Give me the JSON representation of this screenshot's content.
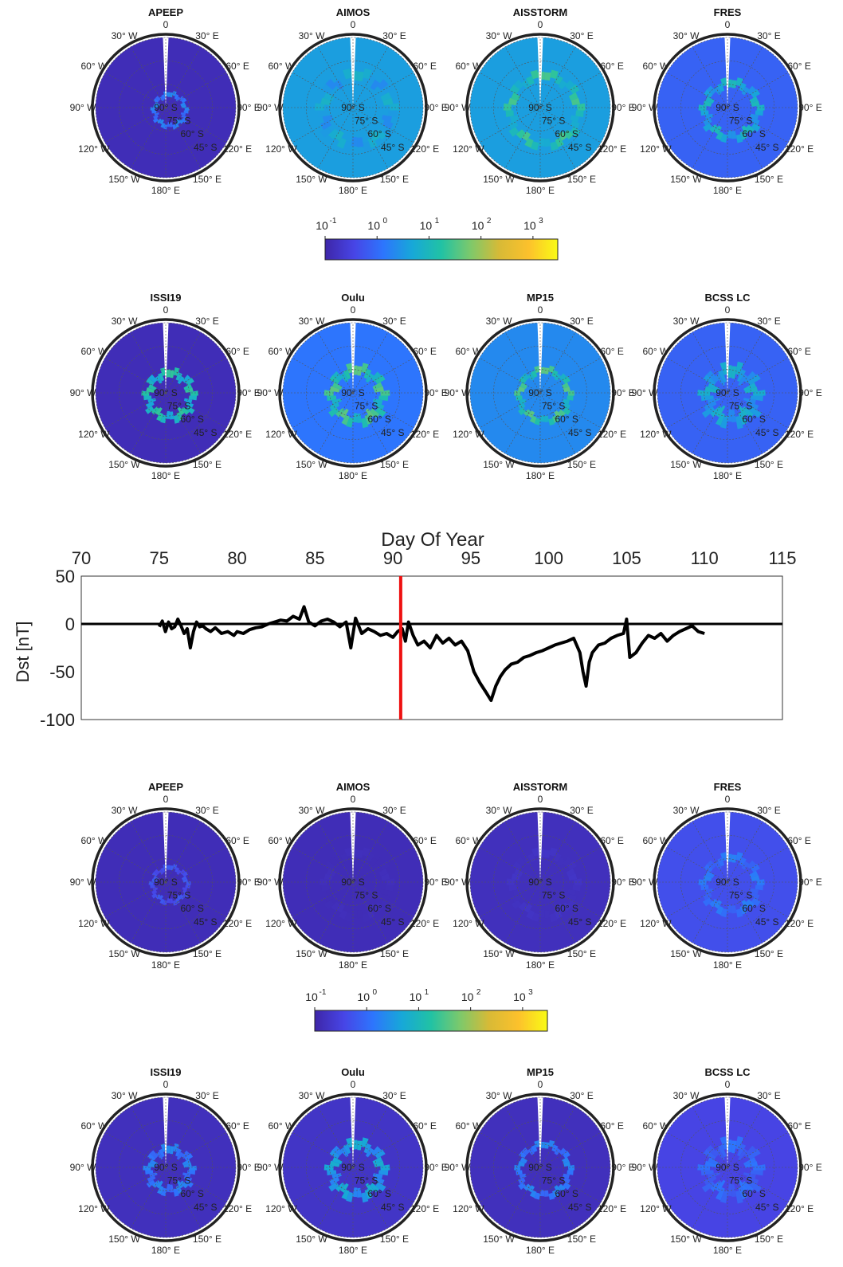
{
  "polar_panel": {
    "lon_labels": [
      "0",
      "30",
      "E",
      "60",
      "E",
      "90",
      "E",
      "120",
      "E",
      "150",
      "E",
      "180",
      "E",
      "150",
      "W",
      "120",
      "W",
      "90",
      "W",
      "60",
      "W",
      "30",
      "W"
    ],
    "lat_labels": [
      "90",
      "S",
      "75",
      "S",
      "60",
      "S",
      "45",
      "S"
    ],
    "degree_symbol": "°"
  },
  "colorbar": {
    "base": "10",
    "exponents": [
      "-1",
      "0",
      "1",
      "2",
      "3"
    ],
    "colormap": [
      "#3e26a8",
      "#4745e6",
      "#2d75fd",
      "#17a8d8",
      "#21c2a4",
      "#7dc96b",
      "#d8ba36",
      "#fcc12c",
      "#f9fb15"
    ],
    "scale": "log",
    "range": [
      0.1,
      3000
    ]
  },
  "line_chart": {
    "title": "Day Of Year",
    "ylabel": "Dst [nT]",
    "xticks": [
      "70",
      "75",
      "80",
      "85",
      "90",
      "95",
      "100",
      "105",
      "110",
      "115"
    ],
    "yticks": [
      "50",
      "0",
      "-50",
      "-100"
    ],
    "line_color": "#000000",
    "marker_color": "#ee1111"
  },
  "chart_data": [
    {
      "type": "heatmap",
      "panel": "APEEP",
      "group": 1,
      "title": "APEEP",
      "projection": "polar-stereographic-south",
      "scale": "log",
      "colorbar_range": [
        0.1,
        3000
      ],
      "oval_center_lat": -83,
      "oval_radius_deg": 10,
      "oval_width_deg": 3,
      "background_level": 0.03,
      "oval_level": 0.3,
      "fill_limit_lat": -45
    },
    {
      "type": "heatmap",
      "panel": "AIMOS",
      "group": 1,
      "title": "AIMOS",
      "projection": "polar-stereographic-south",
      "scale": "log",
      "colorbar_range": [
        0.1,
        3000
      ],
      "oval_radius_deg": 22,
      "oval_width_deg": 6,
      "background_level": 0.35,
      "oval_level": 0.42,
      "fill_limit_lat": -42
    },
    {
      "type": "heatmap",
      "panel": "AISSTORM",
      "group": 1,
      "title": "AISSTORM",
      "projection": "polar-stereographic-south",
      "scale": "log",
      "colorbar_range": [
        0.1,
        3000
      ],
      "oval_radius_deg": 22,
      "oval_width_deg": 5,
      "background_level": 0.35,
      "oval_level": 0.55,
      "fill_limit_lat": -42
    },
    {
      "type": "heatmap",
      "panel": "FRES",
      "group": 1,
      "title": "FRES",
      "projection": "polar-stereographic-south",
      "scale": "log",
      "colorbar_range": [
        0.1,
        3000
      ],
      "oval_radius_deg": 17,
      "oval_width_deg": 5,
      "background_level": 0.2,
      "oval_level": 0.45,
      "fill_limit_lat": -40
    },
    {
      "type": "heatmap",
      "panel": "ISSI19",
      "group": 1,
      "title": "ISSI19",
      "projection": "polar-stereographic-south",
      "scale": "log",
      "colorbar_range": [
        0.1,
        3000
      ],
      "oval_radius_deg": 14,
      "oval_width_deg": 5,
      "background_level": 0.03,
      "oval_level": 0.52,
      "fill_limit_lat": -45
    },
    {
      "type": "heatmap",
      "panel": "Oulu",
      "group": 1,
      "title": "Oulu",
      "projection": "polar-stereographic-south",
      "scale": "log",
      "colorbar_range": [
        0.1,
        3000
      ],
      "oval_radius_deg": 16,
      "oval_width_deg": 6,
      "background_level": 0.25,
      "oval_level": 0.58,
      "fill_limit_lat": -42
    },
    {
      "type": "heatmap",
      "panel": "MP15",
      "group": 1,
      "title": "MP15",
      "projection": "polar-stereographic-south",
      "scale": "log",
      "colorbar_range": [
        0.1,
        3000
      ],
      "oval_radius_deg": 16,
      "oval_width_deg": 4,
      "background_level": 0.3,
      "oval_level": 0.58,
      "fill_limit_lat": -42
    },
    {
      "type": "heatmap",
      "panel": "BCSS LC",
      "group": 1,
      "title": "BCSS LC",
      "projection": "polar-stereographic-south",
      "scale": "log",
      "colorbar_range": [
        0.1,
        3000
      ],
      "oval_radius_deg": 15,
      "oval_width_deg": 8,
      "background_level": 0.2,
      "oval_level": 0.42,
      "fill_limit_lat": -42
    },
    {
      "type": "line",
      "title": "Day Of Year",
      "xlabel": "Day Of Year",
      "ylabel": "Dst [nT]",
      "xlim": [
        70,
        115
      ],
      "ylim": [
        -100,
        50
      ],
      "xticks": [
        70,
        75,
        80,
        85,
        90,
        95,
        100,
        105,
        110,
        115
      ],
      "yticks": [
        50,
        0,
        -50,
        -100
      ],
      "zero_line": 0,
      "vertical_marker_x": 90.5,
      "series": [
        {
          "x": [
            75.0,
            75.2,
            75.4,
            75.6,
            75.8,
            76.0,
            76.2,
            76.4,
            76.6,
            76.8,
            77.0,
            77.2,
            77.4,
            77.6,
            77.8,
            78.0,
            78.3,
            78.6,
            79.0,
            79.4,
            79.8,
            80.0,
            80.4,
            80.8,
            81.2,
            81.6,
            82.0,
            82.4,
            82.8,
            83.2,
            83.6,
            84.0,
            84.3,
            84.6,
            85.0,
            85.4,
            85.8,
            86.2,
            86.6,
            87.0,
            87.3,
            87.6,
            88.0,
            88.4,
            88.8,
            89.2,
            89.6,
            90.0,
            90.3,
            90.6,
            90.8,
            91.0,
            91.3,
            91.6,
            92.0,
            92.4,
            92.8,
            93.2,
            93.6,
            94.0,
            94.4,
            94.8,
            95.2,
            95.6,
            96.0,
            96.3,
            96.6,
            96.9,
            97.2,
            97.6,
            98.0,
            98.4,
            98.8,
            99.2,
            99.6,
            100.0,
            100.4,
            100.8,
            101.2,
            101.6,
            102.0,
            102.2,
            102.4,
            102.6,
            102.8,
            103.2,
            103.6,
            104.0,
            104.4,
            104.8,
            105.0,
            105.2,
            105.6,
            106.0,
            106.4,
            106.8,
            107.2,
            107.6,
            108.0,
            108.4,
            108.8,
            109.2,
            109.6,
            110.0
          ],
          "y": [
            -3,
            3,
            -8,
            2,
            -5,
            -3,
            5,
            -2,
            -10,
            -5,
            -25,
            -8,
            2,
            -3,
            -2,
            -5,
            -8,
            -4,
            -10,
            -8,
            -12,
            -8,
            -10,
            -6,
            -4,
            -3,
            0,
            2,
            4,
            3,
            8,
            5,
            18,
            2,
            -2,
            3,
            5,
            2,
            -3,
            2,
            -25,
            6,
            -10,
            -5,
            -8,
            -12,
            -10,
            -14,
            -8,
            -5,
            -18,
            2,
            -12,
            -22,
            -18,
            -25,
            -12,
            -20,
            -15,
            -22,
            -18,
            -28,
            -50,
            -62,
            -72,
            -80,
            -65,
            -55,
            -48,
            -42,
            -40,
            -35,
            -33,
            -30,
            -28,
            -25,
            -22,
            -20,
            -18,
            -15,
            -30,
            -50,
            -65,
            -40,
            -30,
            -22,
            -20,
            -15,
            -12,
            -10,
            5,
            -35,
            -30,
            -20,
            -12,
            -15,
            -10,
            -18,
            -12,
            -8,
            -5,
            -2,
            -8,
            -10
          ]
        }
      ]
    },
    {
      "type": "heatmap",
      "panel": "APEEP",
      "group": 2,
      "title": "APEEP",
      "projection": "polar-stereographic-south",
      "scale": "log",
      "colorbar_range": [
        0.1,
        3000
      ],
      "oval_radius_deg": 11,
      "oval_width_deg": 3,
      "background_level": 0.03,
      "oval_level": 0.18,
      "fill_limit_lat": -45
    },
    {
      "type": "heatmap",
      "panel": "AIMOS",
      "group": 2,
      "title": "AIMOS",
      "projection": "polar-stereographic-south",
      "scale": "log",
      "colorbar_range": [
        0.1,
        3000
      ],
      "oval_radius_deg": 20,
      "oval_width_deg": 5,
      "background_level": 0.03,
      "oval_level": 0.04,
      "fill_limit_lat": -42
    },
    {
      "type": "heatmap",
      "panel": "AISSTORM",
      "group": 2,
      "title": "AISSTORM",
      "projection": "polar-stereographic-south",
      "scale": "log",
      "colorbar_range": [
        0.1,
        3000
      ],
      "oval_radius_deg": 20,
      "oval_width_deg": 5,
      "background_level": 0.04,
      "oval_level": 0.06,
      "fill_limit_lat": -42
    },
    {
      "type": "heatmap",
      "panel": "FRES",
      "group": 2,
      "title": "FRES",
      "projection": "polar-stereographic-south",
      "scale": "log",
      "colorbar_range": [
        0.1,
        3000
      ],
      "oval_radius_deg": 17,
      "oval_width_deg": 5,
      "background_level": 0.15,
      "oval_level": 0.28,
      "fill_limit_lat": -40
    },
    {
      "type": "heatmap",
      "panel": "ISSI19",
      "group": 2,
      "title": "ISSI19",
      "projection": "polar-stereographic-south",
      "scale": "log",
      "colorbar_range": [
        0.1,
        3000
      ],
      "oval_radius_deg": 13,
      "oval_width_deg": 5,
      "background_level": 0.04,
      "oval_level": 0.3,
      "fill_limit_lat": -45
    },
    {
      "type": "heatmap",
      "panel": "Oulu",
      "group": 2,
      "title": "Oulu",
      "projection": "polar-stereographic-south",
      "scale": "log",
      "colorbar_range": [
        0.1,
        3000
      ],
      "oval_radius_deg": 16,
      "oval_width_deg": 6,
      "background_level": 0.06,
      "oval_level": 0.4,
      "fill_limit_lat": -42
    },
    {
      "type": "heatmap",
      "panel": "MP15",
      "group": 2,
      "title": "MP15",
      "projection": "polar-stereographic-south",
      "scale": "log",
      "colorbar_range": [
        0.1,
        3000
      ],
      "oval_radius_deg": 16,
      "oval_width_deg": 4,
      "background_level": 0.04,
      "oval_level": 0.3,
      "fill_limit_lat": -42
    },
    {
      "type": "heatmap",
      "panel": "BCSS LC",
      "group": 2,
      "title": "BCSS LC",
      "projection": "polar-stereographic-south",
      "scale": "log",
      "colorbar_range": [
        0.1,
        3000
      ],
      "oval_radius_deg": 15,
      "oval_width_deg": 8,
      "background_level": 0.12,
      "oval_level": 0.25,
      "fill_limit_lat": -42
    }
  ]
}
